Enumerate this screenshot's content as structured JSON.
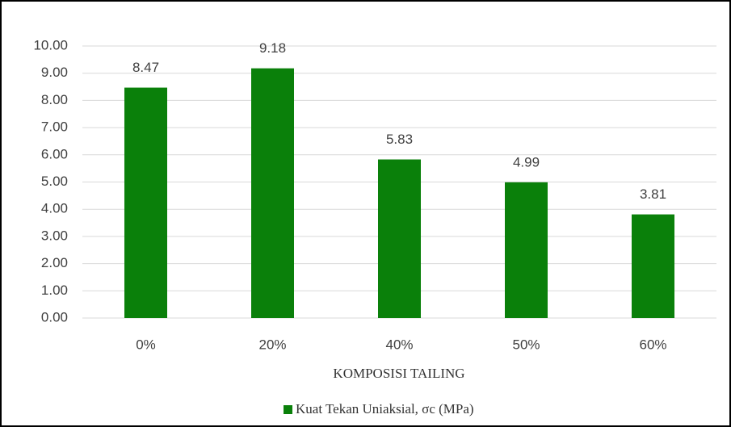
{
  "chart_data": {
    "type": "bar",
    "x_label": "KOMPOSISI TAILING",
    "categories": [
      "0%",
      "20%",
      "40%",
      "50%",
      "60%"
    ],
    "series": [
      {
        "name": "Kuat Tekan Uniaksial, σc (MPa)",
        "color": "#0a800a",
        "values": [
          8.47,
          9.18,
          5.83,
          4.99,
          3.81
        ]
      }
    ],
    "ylim": [
      0,
      10
    ],
    "yticks": [
      {
        "value": 0,
        "label": "0.00"
      },
      {
        "value": 1,
        "label": "1.00"
      },
      {
        "value": 2,
        "label": "2.00"
      },
      {
        "value": 3,
        "label": "3.00"
      },
      {
        "value": 4,
        "label": "4.00"
      },
      {
        "value": 5,
        "label": "5.00"
      },
      {
        "value": 6,
        "label": "6.00"
      },
      {
        "value": 7,
        "label": "7.00"
      },
      {
        "value": 8,
        "label": "8.00"
      },
      {
        "value": 9,
        "label": "9.00"
      },
      {
        "value": 10,
        "label": "10.00"
      }
    ],
    "grid": true,
    "legend": "bottom"
  }
}
